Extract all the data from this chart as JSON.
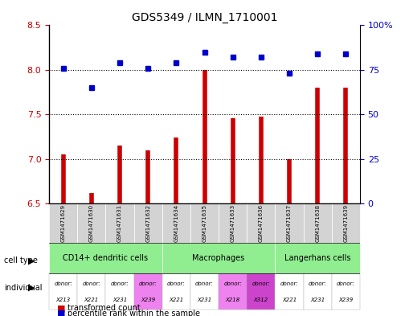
{
  "title": "GDS5349 / ILMN_1710001",
  "samples": [
    "GSM1471629",
    "GSM1471630",
    "GSM1471631",
    "GSM1471632",
    "GSM1471634",
    "GSM1471635",
    "GSM1471633",
    "GSM1471636",
    "GSM1471637",
    "GSM1471638",
    "GSM1471639"
  ],
  "transformed_count": [
    7.05,
    6.62,
    7.15,
    7.1,
    7.24,
    8.0,
    7.46,
    7.48,
    7.0,
    7.8,
    7.8
  ],
  "percentile_rank": [
    76,
    65,
    79,
    76,
    79,
    85,
    82,
    82,
    73,
    84,
    84
  ],
  "ylim_left": [
    6.5,
    8.5
  ],
  "ylim_right": [
    0,
    100
  ],
  "yticks_left": [
    6.5,
    7.0,
    7.5,
    8.0,
    8.5
  ],
  "yticks_right": [
    0,
    25,
    50,
    75,
    100
  ],
  "bar_color": "#cc0000",
  "dot_color": "#0000cc",
  "cell_types": [
    {
      "label": "CD14+ dendritic cells",
      "start": 0,
      "end": 4,
      "color": "#90ee90"
    },
    {
      "label": "Macrophages",
      "start": 4,
      "end": 8,
      "color": "#90ee90"
    },
    {
      "label": "Langerhans cells",
      "start": 8,
      "end": 11,
      "color": "#90ee90"
    }
  ],
  "individuals": [
    {
      "donor": "X213",
      "col": 0,
      "color": "#ffffff"
    },
    {
      "donor": "X221",
      "col": 1,
      "color": "#ffffff"
    },
    {
      "donor": "X231",
      "col": 2,
      "color": "#ffffff"
    },
    {
      "donor": "X239",
      "col": 3,
      "color": "#ee82ee"
    },
    {
      "donor": "X221",
      "col": 4,
      "color": "#ffffff"
    },
    {
      "donor": "X231",
      "col": 5,
      "color": "#ffffff"
    },
    {
      "donor": "X218",
      "col": 6,
      "color": "#ee82ee"
    },
    {
      "donor": "X312",
      "col": 7,
      "color": "#cc44cc"
    },
    {
      "donor": "X221",
      "col": 8,
      "color": "#ffffff"
    },
    {
      "donor": "X231",
      "col": 9,
      "color": "#ffffff"
    },
    {
      "donor": "X239",
      "col": 10,
      "color": "#ffffff"
    }
  ],
  "grid_color": "#000000",
  "dotted_line_color": "#000000",
  "bg_color": "#ffffff",
  "tick_label_color_left": "#cc0000",
  "tick_label_color_right": "#0000cc",
  "bar_width": 0.5
}
